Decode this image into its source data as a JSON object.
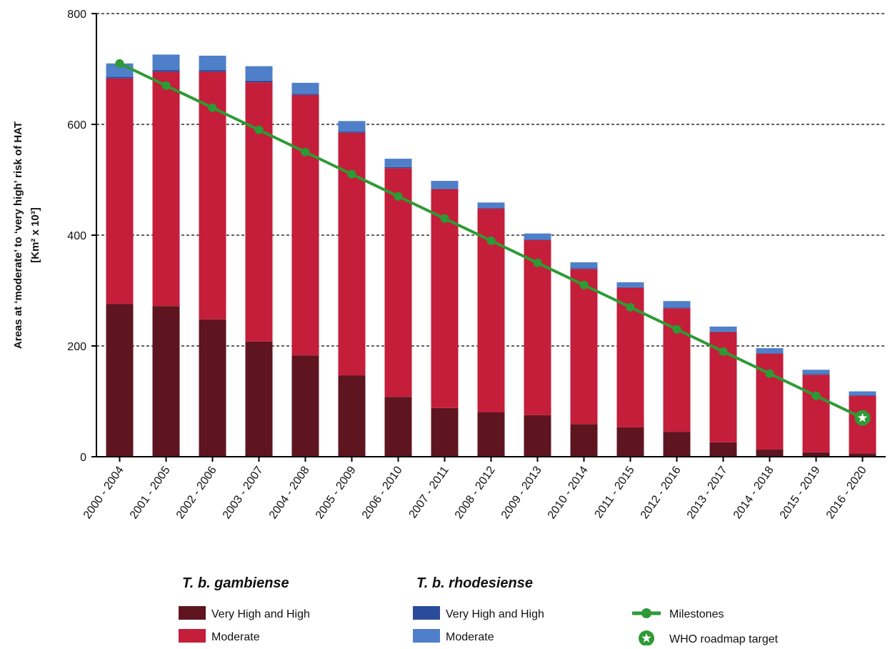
{
  "chart_data": {
    "type": "bar",
    "stacked": true,
    "y_label": [
      "Areas at ‘moderate’ to ‘very high’ risk of HAT",
      "[Km² x 10³]"
    ],
    "categories": [
      "2000 - 2004",
      "2001 - 2005",
      "2002 - 2006",
      "2003 - 2007",
      "2004 - 2008",
      "2005 - 2009",
      "2006 - 2010",
      "2007 - 2011",
      "2008 - 2012",
      "2009 - 2013",
      "2010 - 2014",
      "2011 - 2015",
      "2012 - 2016",
      "2013 - 2017",
      "2014 - 2018",
      "2015 - 2019",
      "2016 - 2020"
    ],
    "groups": [
      "T. b. gambiense",
      "T. b. rhodesiense"
    ],
    "series": [
      {
        "name": "Very High and High",
        "group": 0,
        "color": "#5e1520",
        "values": [
          276,
          272,
          248,
          208,
          183,
          147,
          108,
          88,
          80,
          75,
          59,
          53,
          45,
          26,
          13,
          8,
          6
        ]
      },
      {
        "name": "Moderate",
        "group": 0,
        "color": "#c41e3a",
        "values": [
          407,
          423,
          447,
          468,
          470,
          438,
          413,
          395,
          368,
          316,
          280,
          252,
          223,
          199,
          173,
          140,
          104
        ]
      },
      {
        "name": "Very High and High",
        "group": 1,
        "color": "#2a4a9a",
        "values": [
          3,
          3,
          3,
          3,
          2,
          2,
          2,
          1,
          1,
          1,
          1,
          1,
          1,
          1,
          1,
          1,
          1
        ]
      },
      {
        "name": "Moderate",
        "group": 1,
        "color": "#4f7fc8",
        "values": [
          24,
          28,
          26,
          26,
          20,
          19,
          15,
          14,
          10,
          11,
          11,
          9,
          12,
          9,
          9,
          8,
          7
        ]
      }
    ],
    "lines": [
      {
        "name": "Milestones",
        "color": "#2e9a35",
        "values": [
          710,
          670,
          630,
          590,
          550,
          510,
          470,
          430,
          390,
          350,
          310,
          270,
          230,
          190,
          150,
          110,
          70
        ]
      },
      {
        "name": "WHO roadmap target",
        "color": "#2e9a35",
        "values": [
          null,
          null,
          null,
          null,
          null,
          null,
          null,
          null,
          null,
          null,
          null,
          null,
          null,
          null,
          null,
          null,
          70
        ]
      }
    ],
    "ylim": [
      0,
      800
    ],
    "yticks": [
      0,
      200,
      400,
      600,
      800
    ],
    "grid": true
  }
}
